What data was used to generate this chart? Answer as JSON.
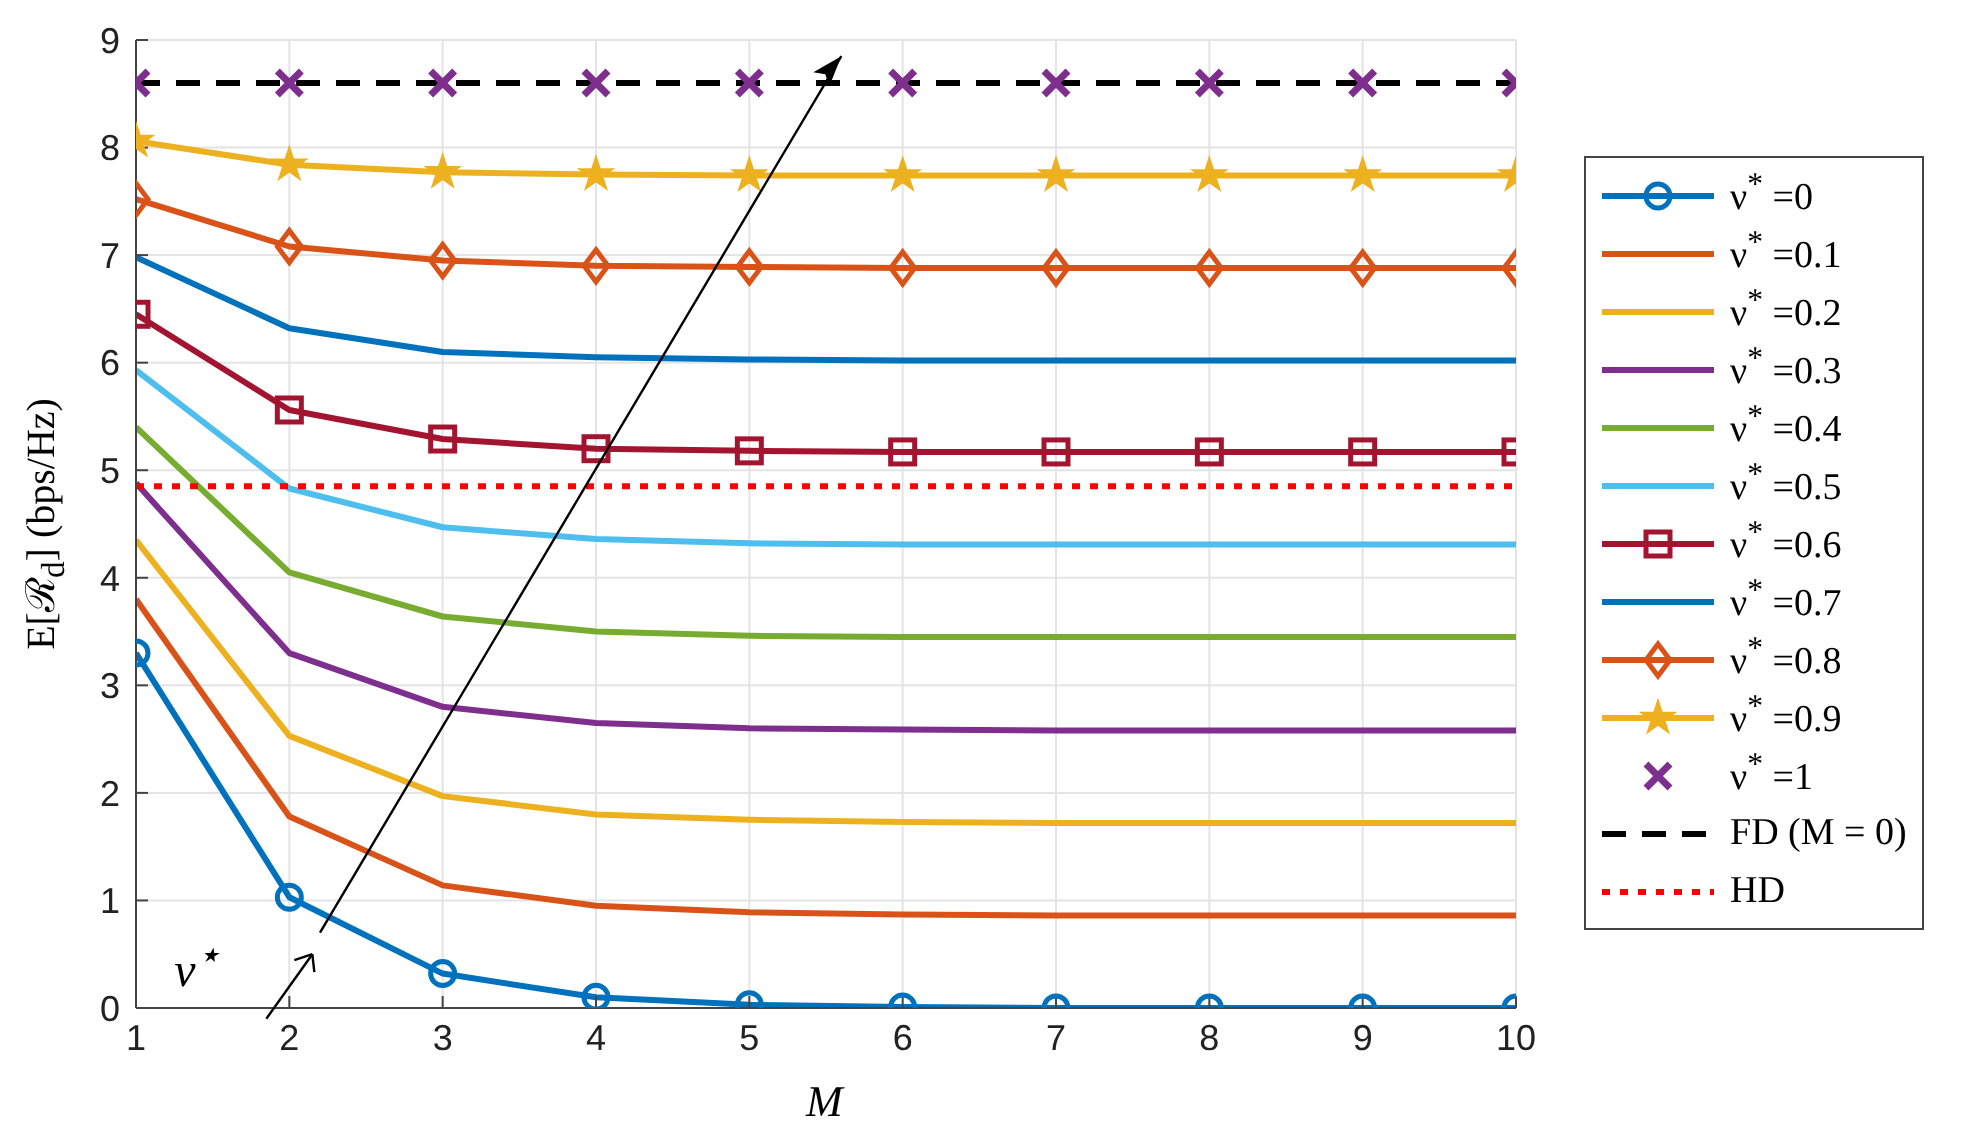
{
  "chart_data": {
    "type": "line",
    "xlabel": "M",
    "ylabel": "E[ℛ$_{d}$] (bps/Hz)",
    "x": [
      1,
      2,
      3,
      4,
      5,
      6,
      7,
      8,
      9,
      10
    ],
    "xlim": [
      1,
      10
    ],
    "xticks": [
      1,
      2,
      3,
      4,
      5,
      6,
      7,
      8,
      9,
      10
    ],
    "ylim": [
      0,
      9
    ],
    "yticks": [
      0,
      1,
      2,
      3,
      4,
      5,
      6,
      7,
      8,
      9
    ],
    "grid": true,
    "legend": "right",
    "annotations": [
      "ν$^{⋆}$"
    ],
    "series": [
      {
        "name": "ν$^{*}$ =0",
        "color": "#0072bd",
        "marker": "circle",
        "values": [
          3.3,
          1.03,
          0.32,
          0.1,
          0.03,
          0.01,
          0,
          0,
          0,
          0
        ]
      },
      {
        "name": "ν$^{*}$ =0.1",
        "color": "#d95319",
        "values": [
          3.8,
          1.78,
          1.14,
          0.95,
          0.89,
          0.87,
          0.86,
          0.86,
          0.86,
          0.86
        ]
      },
      {
        "name": "ν$^{*}$ =0.2",
        "color": "#edb120",
        "values": [
          4.35,
          2.53,
          1.97,
          1.8,
          1.75,
          1.73,
          1.72,
          1.72,
          1.72,
          1.72
        ]
      },
      {
        "name": "ν$^{*}$ =0.3",
        "color": "#7e2f8e",
        "values": [
          4.88,
          3.3,
          2.8,
          2.65,
          2.6,
          2.59,
          2.58,
          2.58,
          2.58,
          2.58
        ]
      },
      {
        "name": "ν$^{*}$ =0.4",
        "color": "#77ac30",
        "values": [
          5.4,
          4.05,
          3.64,
          3.5,
          3.46,
          3.45,
          3.45,
          3.45,
          3.45,
          3.45
        ]
      },
      {
        "name": "ν$^{*}$ =0.5",
        "color": "#4dbeee",
        "values": [
          5.93,
          4.83,
          4.47,
          4.36,
          4.32,
          4.31,
          4.31,
          4.31,
          4.31,
          4.31
        ]
      },
      {
        "name": "ν$^{*}$ =0.6",
        "color": "#a2142f",
        "marker": "square",
        "values": [
          6.45,
          5.56,
          5.29,
          5.2,
          5.18,
          5.17,
          5.17,
          5.17,
          5.17,
          5.17
        ]
      },
      {
        "name": "ν$^{*}$ =0.7",
        "color": "#0072bd",
        "values": [
          6.98,
          6.32,
          6.1,
          6.05,
          6.03,
          6.02,
          6.02,
          6.02,
          6.02,
          6.02
        ]
      },
      {
        "name": "ν$^{*}$ =0.8",
        "color": "#d95319",
        "marker": "diamond",
        "values": [
          7.52,
          7.08,
          6.95,
          6.9,
          6.89,
          6.88,
          6.88,
          6.88,
          6.88,
          6.88
        ]
      },
      {
        "name": "ν$^{*}$ =0.9",
        "color": "#edb120",
        "marker": "star",
        "values": [
          8.06,
          7.84,
          7.77,
          7.75,
          7.74,
          7.74,
          7.74,
          7.74,
          7.74,
          7.74
        ]
      },
      {
        "name": "ν$^{*}$ =1",
        "color": "#7e2f8e",
        "type": "scatter",
        "marker": "cross",
        "values": [
          8.6,
          8.6,
          8.6,
          8.6,
          8.6,
          8.6,
          8.6,
          8.6,
          8.6,
          8.6
        ]
      },
      {
        "name": "FD (M = 0)",
        "color": "#000000",
        "line_style": "dashed",
        "values": [
          8.6,
          8.6,
          8.6,
          8.6,
          8.6,
          8.6,
          8.6,
          8.6,
          8.6,
          8.6
        ]
      },
      {
        "name": "HD",
        "color": "#ff0000",
        "line_style": "dotted",
        "values": [
          4.85,
          4.85,
          4.85,
          4.85,
          4.85,
          4.85,
          4.85,
          4.85,
          4.85,
          4.85
        ]
      }
    ]
  }
}
